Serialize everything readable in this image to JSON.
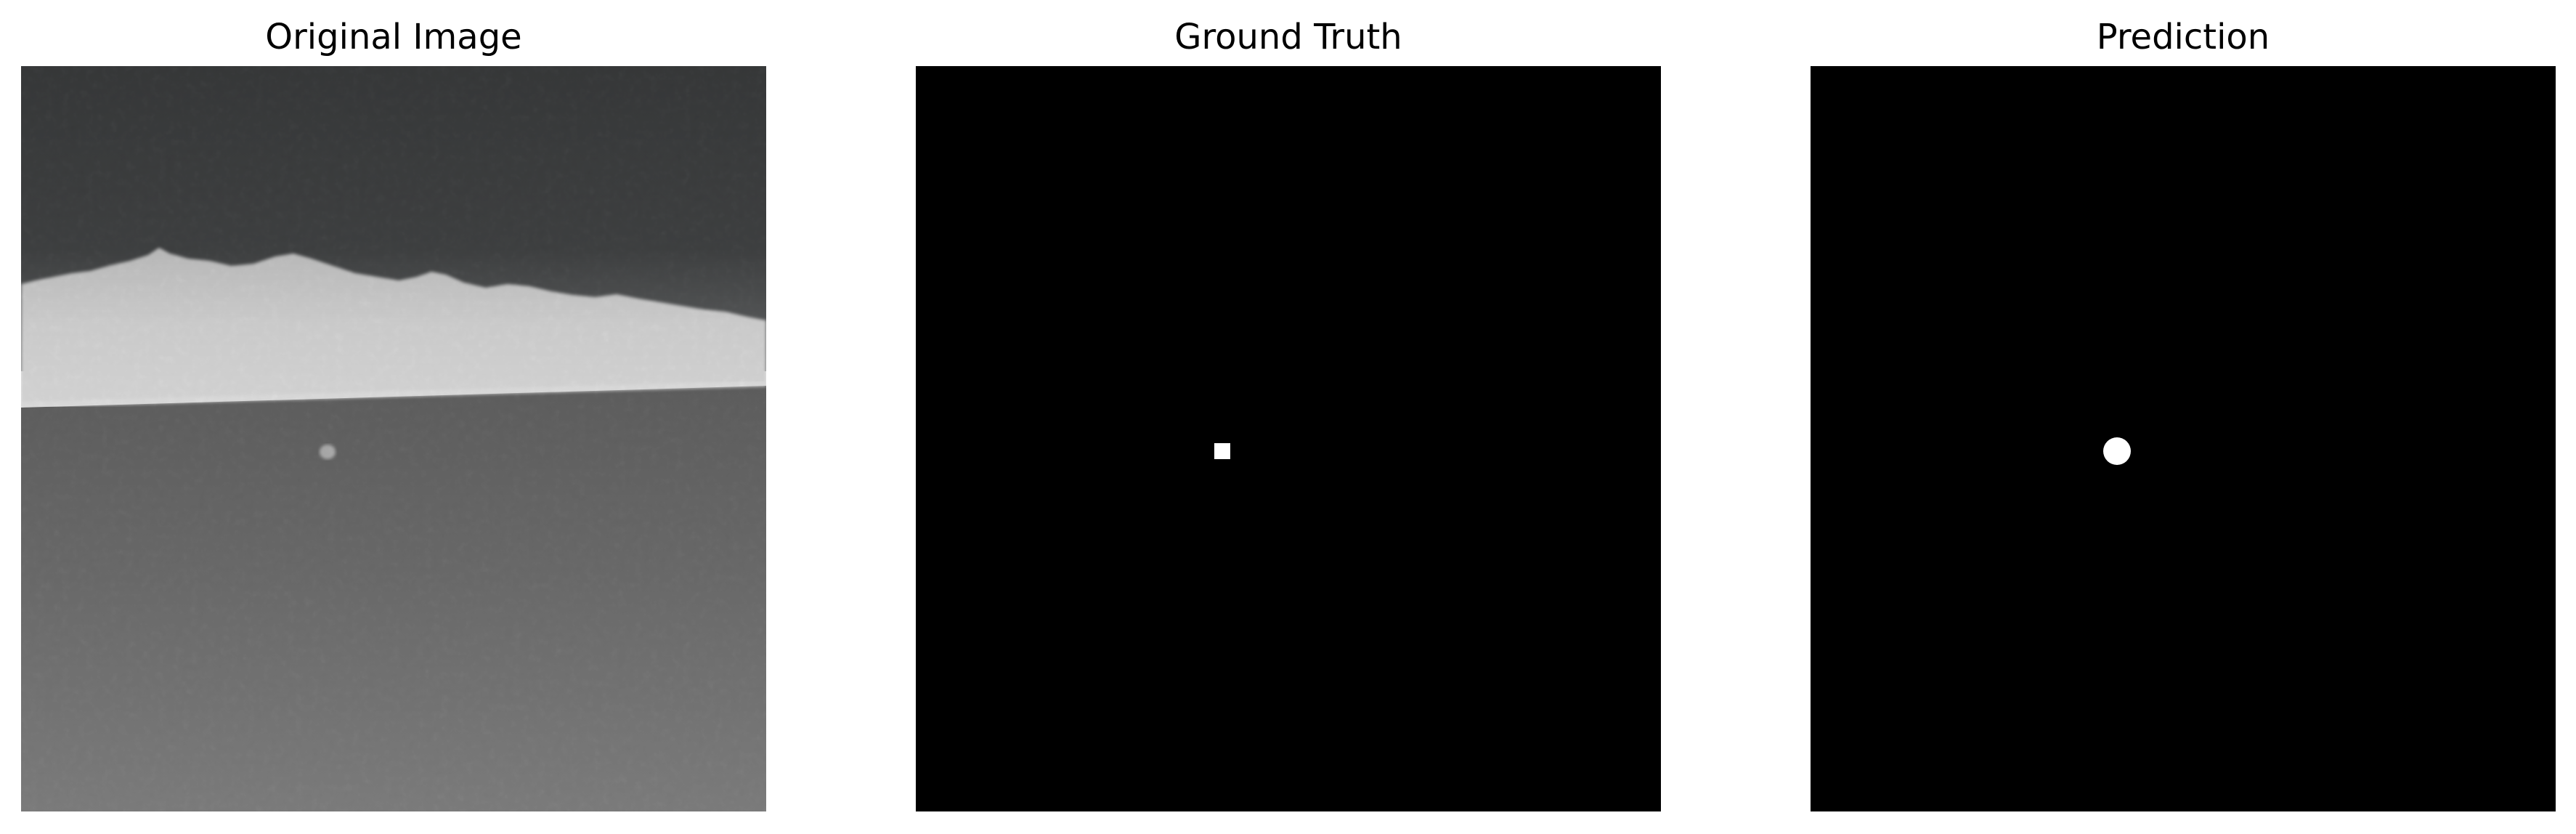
{
  "panels": [
    {
      "title": "Original Image",
      "content": "thermal-infrared-grayscale-scene"
    },
    {
      "title": "Ground Truth",
      "content": "binary-mask-small-target"
    },
    {
      "title": "Prediction",
      "content": "binary-mask-small-target"
    }
  ],
  "colors": {
    "background": "#ffffff",
    "mask_background": "#000000",
    "mask_target": "#ffffff",
    "sky": "#2b2d2e",
    "horizon_band": "#d8d8d8",
    "ground": "#6e6e6e"
  }
}
